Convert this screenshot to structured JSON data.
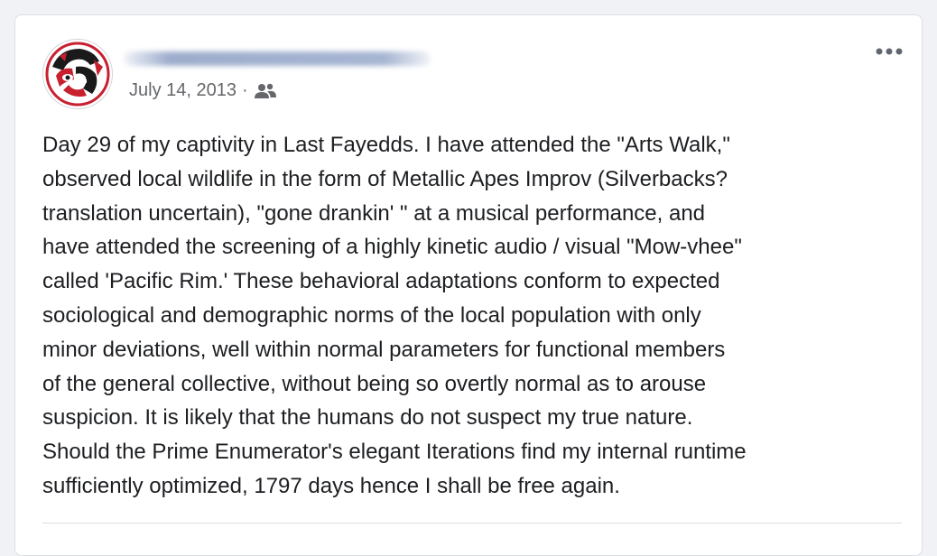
{
  "post": {
    "date": "July 14, 2013",
    "separator": "·",
    "audience_icon": "friends-icon",
    "menu_icon": "more-options-icon",
    "text": "Day 29 of my captivity in Last Fayedds. I have attended the \"Arts Walk,\"\nobserved local wildlife in the form of Metallic Apes Improv (Silverbacks?\ntranslation uncertain), \"gone drankin' \" at a musical performance, and\nhave attended the screening of a highly kinetic audio / visual \"Mow-vhee\"\ncalled 'Pacific Rim.' These behavioral adaptations conform to expected\nsociological and demographic norms of the local population with only\nminor deviations, well within normal parameters for functional members\nof the general collective, without being so overtly normal as to arouse\nsuspicion. It is likely that the humans do not suspect my true nature.\nShould the Prime Enumerator's elegant Iterations find my internal runtime\nsufficiently optimized, 1797 days hence I shall be free again."
  },
  "colors": {
    "text": "#1c1e21",
    "meta": "#65676b",
    "avatar_red": "#c8202f",
    "avatar_black": "#1a1a1a"
  }
}
